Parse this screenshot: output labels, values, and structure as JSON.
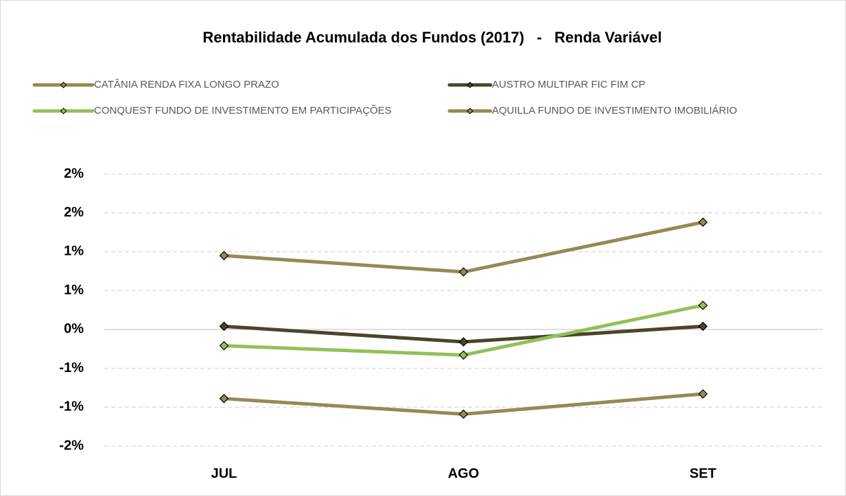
{
  "chart_data": {
    "type": "line",
    "title": "Rentabilidade Acumulada dos Fundos (2017)   -   Renda Variável",
    "categories": [
      "JUL",
      "AGO",
      "SET"
    ],
    "series": [
      {
        "name": "CATÂNIA RENDA FIXA LONGO PRAZO",
        "color": "#948a54",
        "values": [
          0.95,
          0.74,
          1.38
        ]
      },
      {
        "name": "AUSTRO MULTIPAR FIC FIM CP",
        "color": "#4a452a",
        "values": [
          0.04,
          -0.16,
          0.04
        ]
      },
      {
        "name": "CONQUEST FUNDO DE INVESTIMENTO EM PARTICIPAÇÕES",
        "color": "#92c05a",
        "values": [
          -0.21,
          -0.33,
          0.31
        ]
      },
      {
        "name": "AQUILLA FUNDO DE INVESTIMENTO IMOBILIÁRIO",
        "color": "#948a54",
        "values": [
          -0.89,
          -1.09,
          -0.83
        ]
      }
    ],
    "ylim": [
      -1.5,
      2
    ],
    "yticks": [
      {
        "value": 2,
        "label": "2%"
      },
      {
        "value": 1.5,
        "label": "2%"
      },
      {
        "value": 1,
        "label": "1%"
      },
      {
        "value": 0.5,
        "label": "1%"
      },
      {
        "value": 0,
        "label": "0%"
      },
      {
        "value": -0.5,
        "label": "-1%"
      },
      {
        "value": -1,
        "label": "-1%"
      },
      {
        "value": -1.5,
        "label": "-2%"
      }
    ],
    "grid": true
  }
}
